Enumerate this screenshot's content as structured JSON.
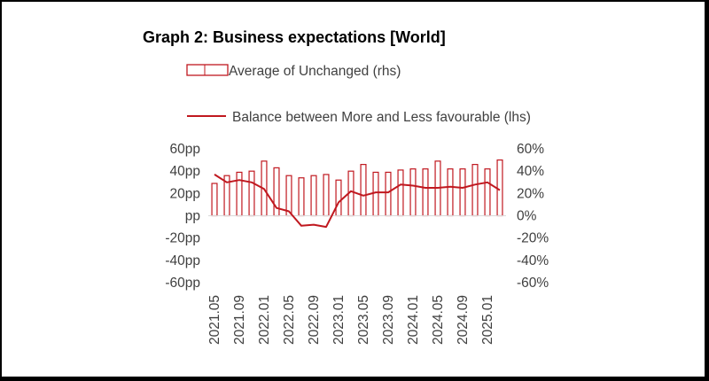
{
  "chart_data": {
    "type": "bar+line",
    "title": "Graph 2: Business expectations [World]",
    "legend": {
      "bar_label": "Average of Unchanged (rhs)",
      "line_label": "Balance between More and Less favourable (lhs)"
    },
    "colors": {
      "series": "#C0181F",
      "text": "#404040"
    },
    "left_axis": {
      "min": -60,
      "max": 60,
      "step": 20,
      "ticks": [
        "60pp",
        "40pp",
        "20pp",
        "pp",
        "-20pp",
        "-40pp",
        "-60pp"
      ]
    },
    "right_axis": {
      "min": -60,
      "max": 60,
      "step": 20,
      "ticks": [
        "60%",
        "40%",
        "20%",
        "0%",
        "-20%",
        "-40%",
        "-60%"
      ]
    },
    "x_tick_labels": [
      "2021.05",
      "2021.09",
      "2022.01",
      "2022.05",
      "2022.09",
      "2023.01",
      "2023.05",
      "2023.09",
      "2024.01",
      "2024.05",
      "2024.09",
      "2025.01"
    ],
    "x_tick_every": 2,
    "months": [
      "2021.05",
      "2021.07",
      "2021.09",
      "2021.11",
      "2022.01",
      "2022.03",
      "2022.05",
      "2022.07",
      "2022.09",
      "2022.11",
      "2023.01",
      "2023.03",
      "2023.05",
      "2023.07",
      "2023.09",
      "2023.11",
      "2024.01",
      "2024.03",
      "2024.05",
      "2024.07",
      "2024.09",
      "2024.11",
      "2025.01",
      "2025.03"
    ],
    "series": [
      {
        "name": "Average of Unchanged (rhs)",
        "type": "bar",
        "axis": "right",
        "values": [
          29,
          36,
          39,
          40,
          49,
          43,
          36,
          34,
          36,
          37,
          32,
          40,
          46,
          39,
          39,
          41,
          42,
          42,
          49,
          42,
          42,
          46,
          42,
          50
        ]
      },
      {
        "name": "Balance between More and Less favourable (lhs)",
        "type": "line",
        "axis": "left",
        "values": [
          37,
          30,
          32,
          30,
          24,
          7,
          4,
          -9,
          -8,
          -10,
          12,
          22,
          18,
          21,
          21,
          28,
          27,
          25,
          25,
          26,
          25,
          28,
          30,
          23
        ]
      }
    ]
  }
}
